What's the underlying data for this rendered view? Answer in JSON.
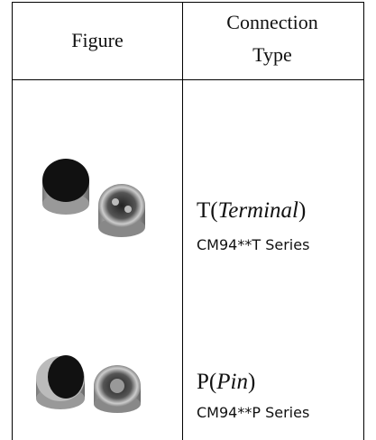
{
  "table": {
    "headers": [
      "Figure",
      "Connection Type"
    ],
    "rows": [
      {
        "label": {
          "prefix": "T(",
          "italic": "Terminal",
          "suffix": ")"
        },
        "series": "CM94**T Series"
      },
      {
        "label": {
          "prefix": "P(",
          "italic": "Pin",
          "suffix": ")"
        },
        "series": "CM94**P Series"
      }
    ]
  }
}
